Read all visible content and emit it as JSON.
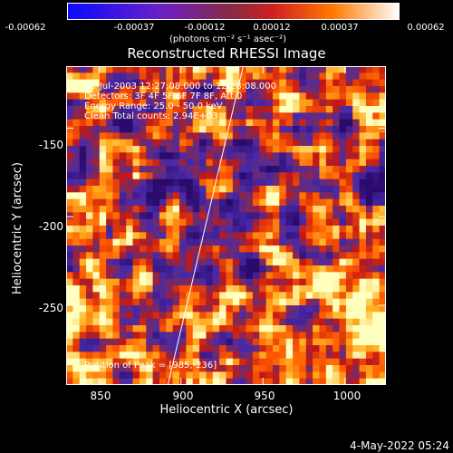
{
  "colorbar": {
    "ticks": [
      "-0.00062",
      "-0.00037",
      "-0.00012",
      "0.00012",
      "0.00037",
      "0.00062"
    ],
    "tick_values": [
      -0.00062,
      -0.00037,
      -0.00012,
      0.00012,
      0.00037,
      0.00062
    ],
    "units": "(photons cm⁻² s⁻¹ asec⁻²)",
    "colors": [
      "#0a0aff",
      "#6a20c8",
      "#8a2a40",
      "#d02020",
      "#ff7a00",
      "#ffffff"
    ]
  },
  "annotations": {
    "time": "26-Jul-2003 12:27:08.000 to 12:28:08.000",
    "detectors": "Detectors: 3F 4F 5F 6F 7F 8F, Att 0",
    "energy": "Energy Range: 25.0 - 50.0 keV",
    "clean": "Clean     Total counts: 2.94E+03",
    "peak": "Position of Peak = [985,-236]"
  },
  "footer": {
    "timestamp": "4-May-2022 05:24"
  },
  "chart_data": {
    "type": "heatmap",
    "title": "Reconstructed RHESSI Image",
    "xlabel": "Heliocentric X (arcsec)",
    "ylabel": "Heliocentric Y (arcsec)",
    "xlim": [
      830,
      1025
    ],
    "ylim": [
      -295,
      -115
    ],
    "x_ticks": [
      850,
      900,
      950,
      1000
    ],
    "y_ticks": [
      -150,
      -200,
      -250
    ],
    "clim": [
      -0.00062,
      0.00062
    ],
    "peak": {
      "x": 985,
      "y": -236
    },
    "limb": [
      [
        892,
        -295
      ],
      [
        938,
        -115
      ]
    ]
  }
}
